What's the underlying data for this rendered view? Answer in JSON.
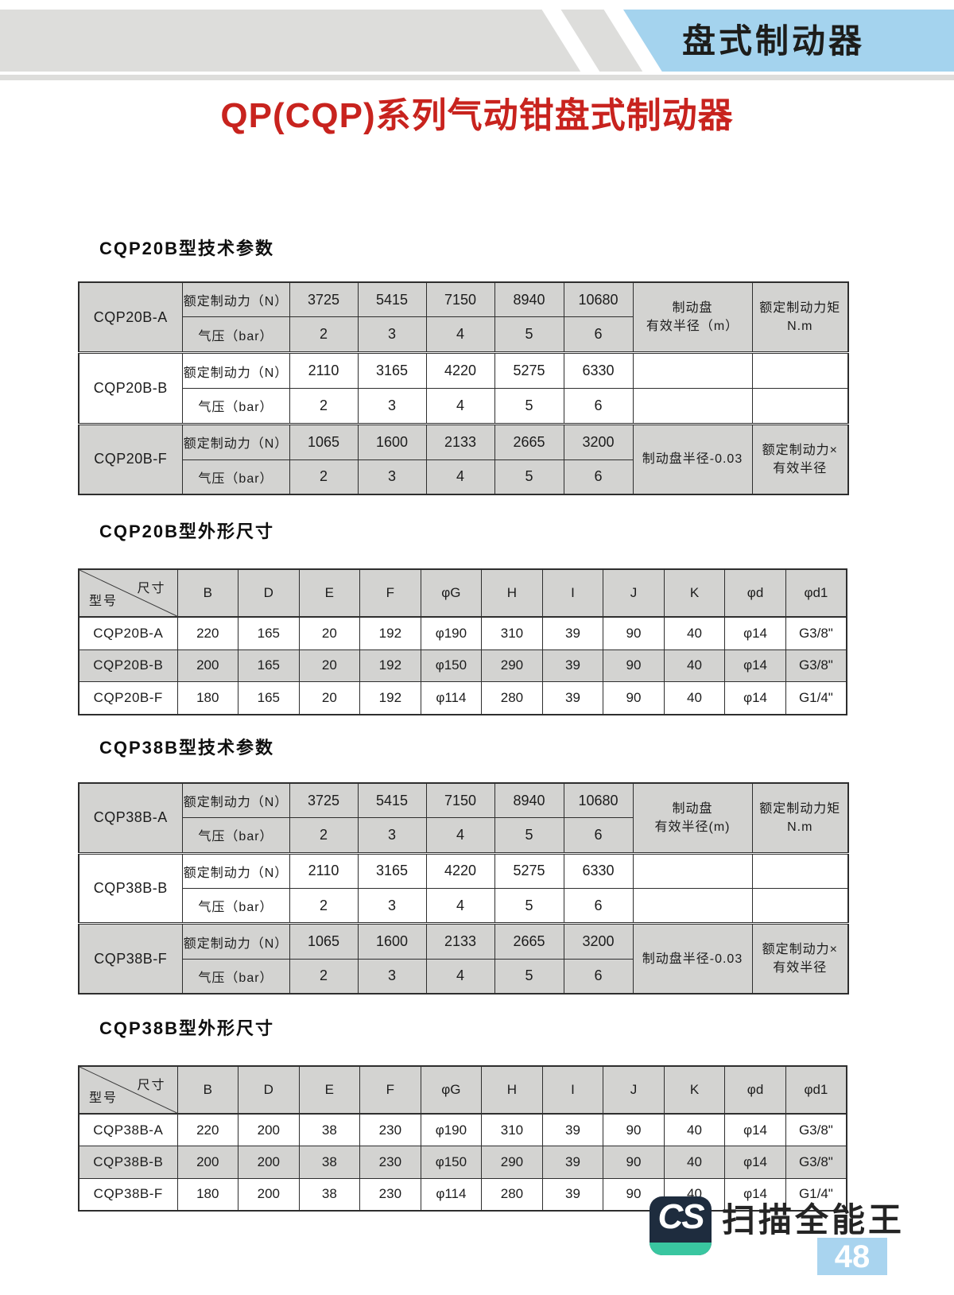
{
  "header": {
    "tab_title": "盘式制动器",
    "main_title": "QP(CQP)系列气动钳盘式制动器"
  },
  "colors": {
    "band_gray": "#dddddb",
    "band_blue": "#a4d3ee",
    "title_red": "#c8231e",
    "table_gray": "#d3d3d1",
    "border": "#2e2e2e",
    "logo_navy": "#1e2c3e",
    "logo_teal": "#39c6a0",
    "badge_blue": "#a9d4ef"
  },
  "sections": [
    {
      "heading": "CQP20B型技术参数",
      "type": "tech",
      "table": {
        "force_label": "额定制动力（N）",
        "pressure_label": "气压（bar）",
        "right_top": {
          "radius": "制动盘\n有效半径（m）",
          "torque": "额定制动力矩\nN.m"
        },
        "right_bottom": {
          "radius": "制动盘半径-0.03",
          "torque": "额定制动力×\n有效半径"
        },
        "groups": [
          {
            "model": "CQP20B-A",
            "shaded": true,
            "force": [
              "3725",
              "5415",
              "7150",
              "8940",
              "10680"
            ],
            "pressure": [
              "2",
              "3",
              "4",
              "5",
              "6"
            ]
          },
          {
            "model": "CQP20B-B",
            "shaded": false,
            "force": [
              "2110",
              "3165",
              "4220",
              "5275",
              "6330"
            ],
            "pressure": [
              "2",
              "3",
              "4",
              "5",
              "6"
            ]
          },
          {
            "model": "CQP20B-F",
            "shaded": true,
            "force": [
              "1065",
              "1600",
              "2133",
              "2665",
              "3200"
            ],
            "pressure": [
              "2",
              "3",
              "4",
              "5",
              "6"
            ]
          }
        ]
      }
    },
    {
      "heading": "CQP20B型外形尺寸",
      "type": "dim",
      "table": {
        "corner_top": "尺寸",
        "corner_bottom": "型号",
        "columns": [
          "B",
          "D",
          "E",
          "F",
          "φG",
          "H",
          "I",
          "J",
          "K",
          "φd",
          "φd1"
        ],
        "rows": [
          {
            "model": "CQP20B-A",
            "shaded": false,
            "values": [
              "220",
              "165",
              "20",
              "192",
              "φ190",
              "310",
              "39",
              "90",
              "40",
              "φ14",
              "G3/8\""
            ]
          },
          {
            "model": "CQP20B-B",
            "shaded": true,
            "values": [
              "200",
              "165",
              "20",
              "192",
              "φ150",
              "290",
              "39",
              "90",
              "40",
              "φ14",
              "G3/8\""
            ]
          },
          {
            "model": "CQP20B-F",
            "shaded": false,
            "values": [
              "180",
              "165",
              "20",
              "192",
              "φ114",
              "280",
              "39",
              "90",
              "40",
              "φ14",
              "G1/4\""
            ]
          }
        ]
      }
    },
    {
      "heading": "CQP38B型技术参数",
      "type": "tech",
      "table": {
        "force_label": "额定制动力（N）",
        "pressure_label": "气压（bar）",
        "right_top": {
          "radius": "制动盘\n有效半径(m)",
          "torque": "额定制动力矩\nN.m"
        },
        "right_bottom": {
          "radius": "制动盘半径-0.03",
          "torque": "额定制动力×\n有效半径"
        },
        "groups": [
          {
            "model": "CQP38B-A",
            "shaded": true,
            "force": [
              "3725",
              "5415",
              "7150",
              "8940",
              "10680"
            ],
            "pressure": [
              "2",
              "3",
              "4",
              "5",
              "6"
            ]
          },
          {
            "model": "CQP38B-B",
            "shaded": false,
            "force": [
              "2110",
              "3165",
              "4220",
              "5275",
              "6330"
            ],
            "pressure": [
              "2",
              "3",
              "4",
              "5",
              "6"
            ]
          },
          {
            "model": "CQP38B-F",
            "shaded": true,
            "force": [
              "1065",
              "1600",
              "2133",
              "2665",
              "3200"
            ],
            "pressure": [
              "2",
              "3",
              "4",
              "5",
              "6"
            ]
          }
        ]
      }
    },
    {
      "heading": "CQP38B型外形尺寸",
      "type": "dim",
      "table": {
        "corner_top": "尺寸",
        "corner_bottom": "型号",
        "columns": [
          "B",
          "D",
          "E",
          "F",
          "φG",
          "H",
          "I",
          "J",
          "K",
          "φd",
          "φd1"
        ],
        "rows": [
          {
            "model": "CQP38B-A",
            "shaded": false,
            "values": [
              "220",
              "200",
              "38",
              "230",
              "φ190",
              "310",
              "39",
              "90",
              "40",
              "φ14",
              "G3/8\""
            ]
          },
          {
            "model": "CQP38B-B",
            "shaded": true,
            "values": [
              "200",
              "200",
              "38",
              "230",
              "φ150",
              "290",
              "39",
              "90",
              "40",
              "φ14",
              "G3/8\""
            ]
          },
          {
            "model": "CQP38B-F",
            "shaded": false,
            "values": [
              "180",
              "200",
              "38",
              "230",
              "φ114",
              "280",
              "39",
              "90",
              "40",
              "φ14",
              "G1/4\""
            ]
          }
        ]
      }
    }
  ],
  "watermark": {
    "logo_text": "CS",
    "app_name": "扫描全能王",
    "page_number": "48"
  }
}
